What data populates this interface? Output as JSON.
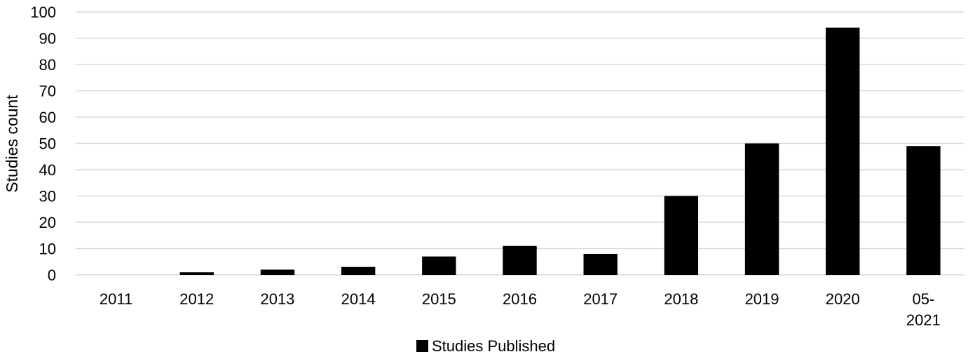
{
  "chart_data": {
    "type": "bar",
    "categories": [
      "2011",
      "2012",
      "2013",
      "2014",
      "2015",
      "2016",
      "2017",
      "2018",
      "2019",
      "2020",
      "05-2021"
    ],
    "series": [
      {
        "name": "Studies Published",
        "values": [
          0,
          1,
          2,
          3,
          7,
          11,
          8,
          30,
          50,
          94,
          49
        ],
        "color": "#000000"
      }
    ],
    "title": "",
    "xlabel": "",
    "ylabel": "Studies count",
    "ylim": [
      0,
      100
    ],
    "yticks": [
      0,
      10,
      20,
      30,
      40,
      50,
      60,
      70,
      80,
      90,
      100
    ],
    "grid": true,
    "legend_position": "bottom-center"
  }
}
